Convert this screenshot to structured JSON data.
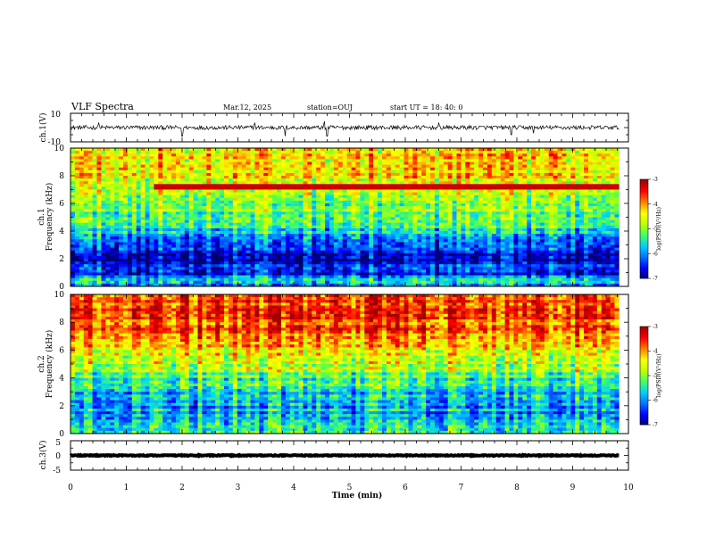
{
  "header": {
    "title": "VLF Spectra",
    "date": "Mar.12, 2025",
    "station": "station=OUJ",
    "start": "start UT =  18: 40: 0"
  },
  "colors": {
    "trace": "#000000",
    "colormap": [
      "#000070",
      "#0000ff",
      "#0070ff",
      "#00d0ff",
      "#40ff60",
      "#c0ff00",
      "#ffff00",
      "#ff8000",
      "#ff0000",
      "#a00000"
    ]
  },
  "chart_data": [
    {
      "type": "line",
      "name": "ch1-waveform",
      "ylabel": "ch.1(V)",
      "yticks": [
        "10",
        "-10"
      ],
      "ylim": [
        -10,
        10
      ],
      "xlim": [
        0,
        9.83
      ],
      "baseline": 0,
      "noise_amplitude": 1.5,
      "spikes": [
        {
          "x": 0.5,
          "y": 3.5
        },
        {
          "x": 2.0,
          "y": -6.0
        },
        {
          "x": 3.3,
          "y": 3.5
        },
        {
          "x": 3.85,
          "y": -6.0
        },
        {
          "x": 4.55,
          "y": 4.5
        },
        {
          "x": 4.6,
          "y": -6.0
        },
        {
          "x": 6.6,
          "y": 3.5
        },
        {
          "x": 7.9,
          "y": -5.0
        },
        {
          "x": 8.3,
          "y": -4.0
        }
      ]
    },
    {
      "type": "heatmap",
      "name": "ch1-spectrogram",
      "ylabel_top": "ch.1",
      "ylabel": "Frequency (kHz)",
      "yticks": [
        "0",
        "2",
        "4",
        "6",
        "8",
        "10"
      ],
      "ylim": [
        0,
        10
      ],
      "xlim": [
        0,
        9.83
      ],
      "colorbar_label": "log(PSD)(V²/Hz)",
      "colorbar_ticks": [
        "-3",
        "-4",
        "-5",
        "-6",
        "-7"
      ],
      "clim": [
        -7,
        -3
      ],
      "profile": [
        {
          "f": 0.0,
          "v": -6.0
        },
        {
          "f": 0.5,
          "v": -5.6
        },
        {
          "f": 1.0,
          "v": -6.7
        },
        {
          "f": 1.5,
          "v": -6.4
        },
        {
          "f": 2.0,
          "v": -6.8
        },
        {
          "f": 2.5,
          "v": -6.6
        },
        {
          "f": 3.0,
          "v": -6.3
        },
        {
          "f": 3.5,
          "v": -5.9
        },
        {
          "f": 4.0,
          "v": -5.6
        },
        {
          "f": 5.0,
          "v": -5.2
        },
        {
          "f": 6.0,
          "v": -5.0
        },
        {
          "f": 7.0,
          "v": -4.7
        },
        {
          "f": 8.0,
          "v": -4.4
        },
        {
          "f": 9.0,
          "v": -4.3
        },
        {
          "f": 10.0,
          "v": -4.3
        }
      ],
      "tones": [
        {
          "f": 7.2,
          "t0": 1.5,
          "t1": 9.8,
          "v": -3.2
        }
      ]
    },
    {
      "type": "heatmap",
      "name": "ch2-spectrogram",
      "ylabel_top": "ch.2",
      "ylabel": "Frequency (kHz)",
      "yticks": [
        "0",
        "2",
        "4",
        "6",
        "8",
        "10"
      ],
      "ylim": [
        0,
        10
      ],
      "xlim": [
        0,
        9.83
      ],
      "colorbar_label": "log(PSD)(V²/Hz)",
      "colorbar_ticks": [
        "-3",
        "-4",
        "-5",
        "-6",
        "-7"
      ],
      "clim": [
        -7,
        -3
      ],
      "profile": [
        {
          "f": 0.0,
          "v": -5.3
        },
        {
          "f": 1.0,
          "v": -5.6
        },
        {
          "f": 2.0,
          "v": -5.9
        },
        {
          "f": 3.0,
          "v": -5.6
        },
        {
          "f": 4.0,
          "v": -5.2
        },
        {
          "f": 5.0,
          "v": -4.7
        },
        {
          "f": 6.0,
          "v": -4.3
        },
        {
          "f": 7.0,
          "v": -3.9
        },
        {
          "f": 8.0,
          "v": -3.6
        },
        {
          "f": 9.0,
          "v": -3.6
        },
        {
          "f": 10.0,
          "v": -3.7
        }
      ],
      "tones": []
    },
    {
      "type": "line",
      "name": "ch3-waveform",
      "ylabel": "ch.3(V)",
      "yticks": [
        "5",
        "0",
        "-5"
      ],
      "ylim": [
        -5,
        5
      ],
      "xlim": [
        0,
        9.83
      ],
      "baseline": 0,
      "noise_amplitude": 0.15,
      "spikes": []
    }
  ],
  "xaxis": {
    "label": "Time (min)",
    "ticks": [
      "0",
      "1",
      "2",
      "3",
      "4",
      "5",
      "6",
      "7",
      "8",
      "9",
      "10"
    ],
    "xlim": [
      0,
      10
    ]
  }
}
